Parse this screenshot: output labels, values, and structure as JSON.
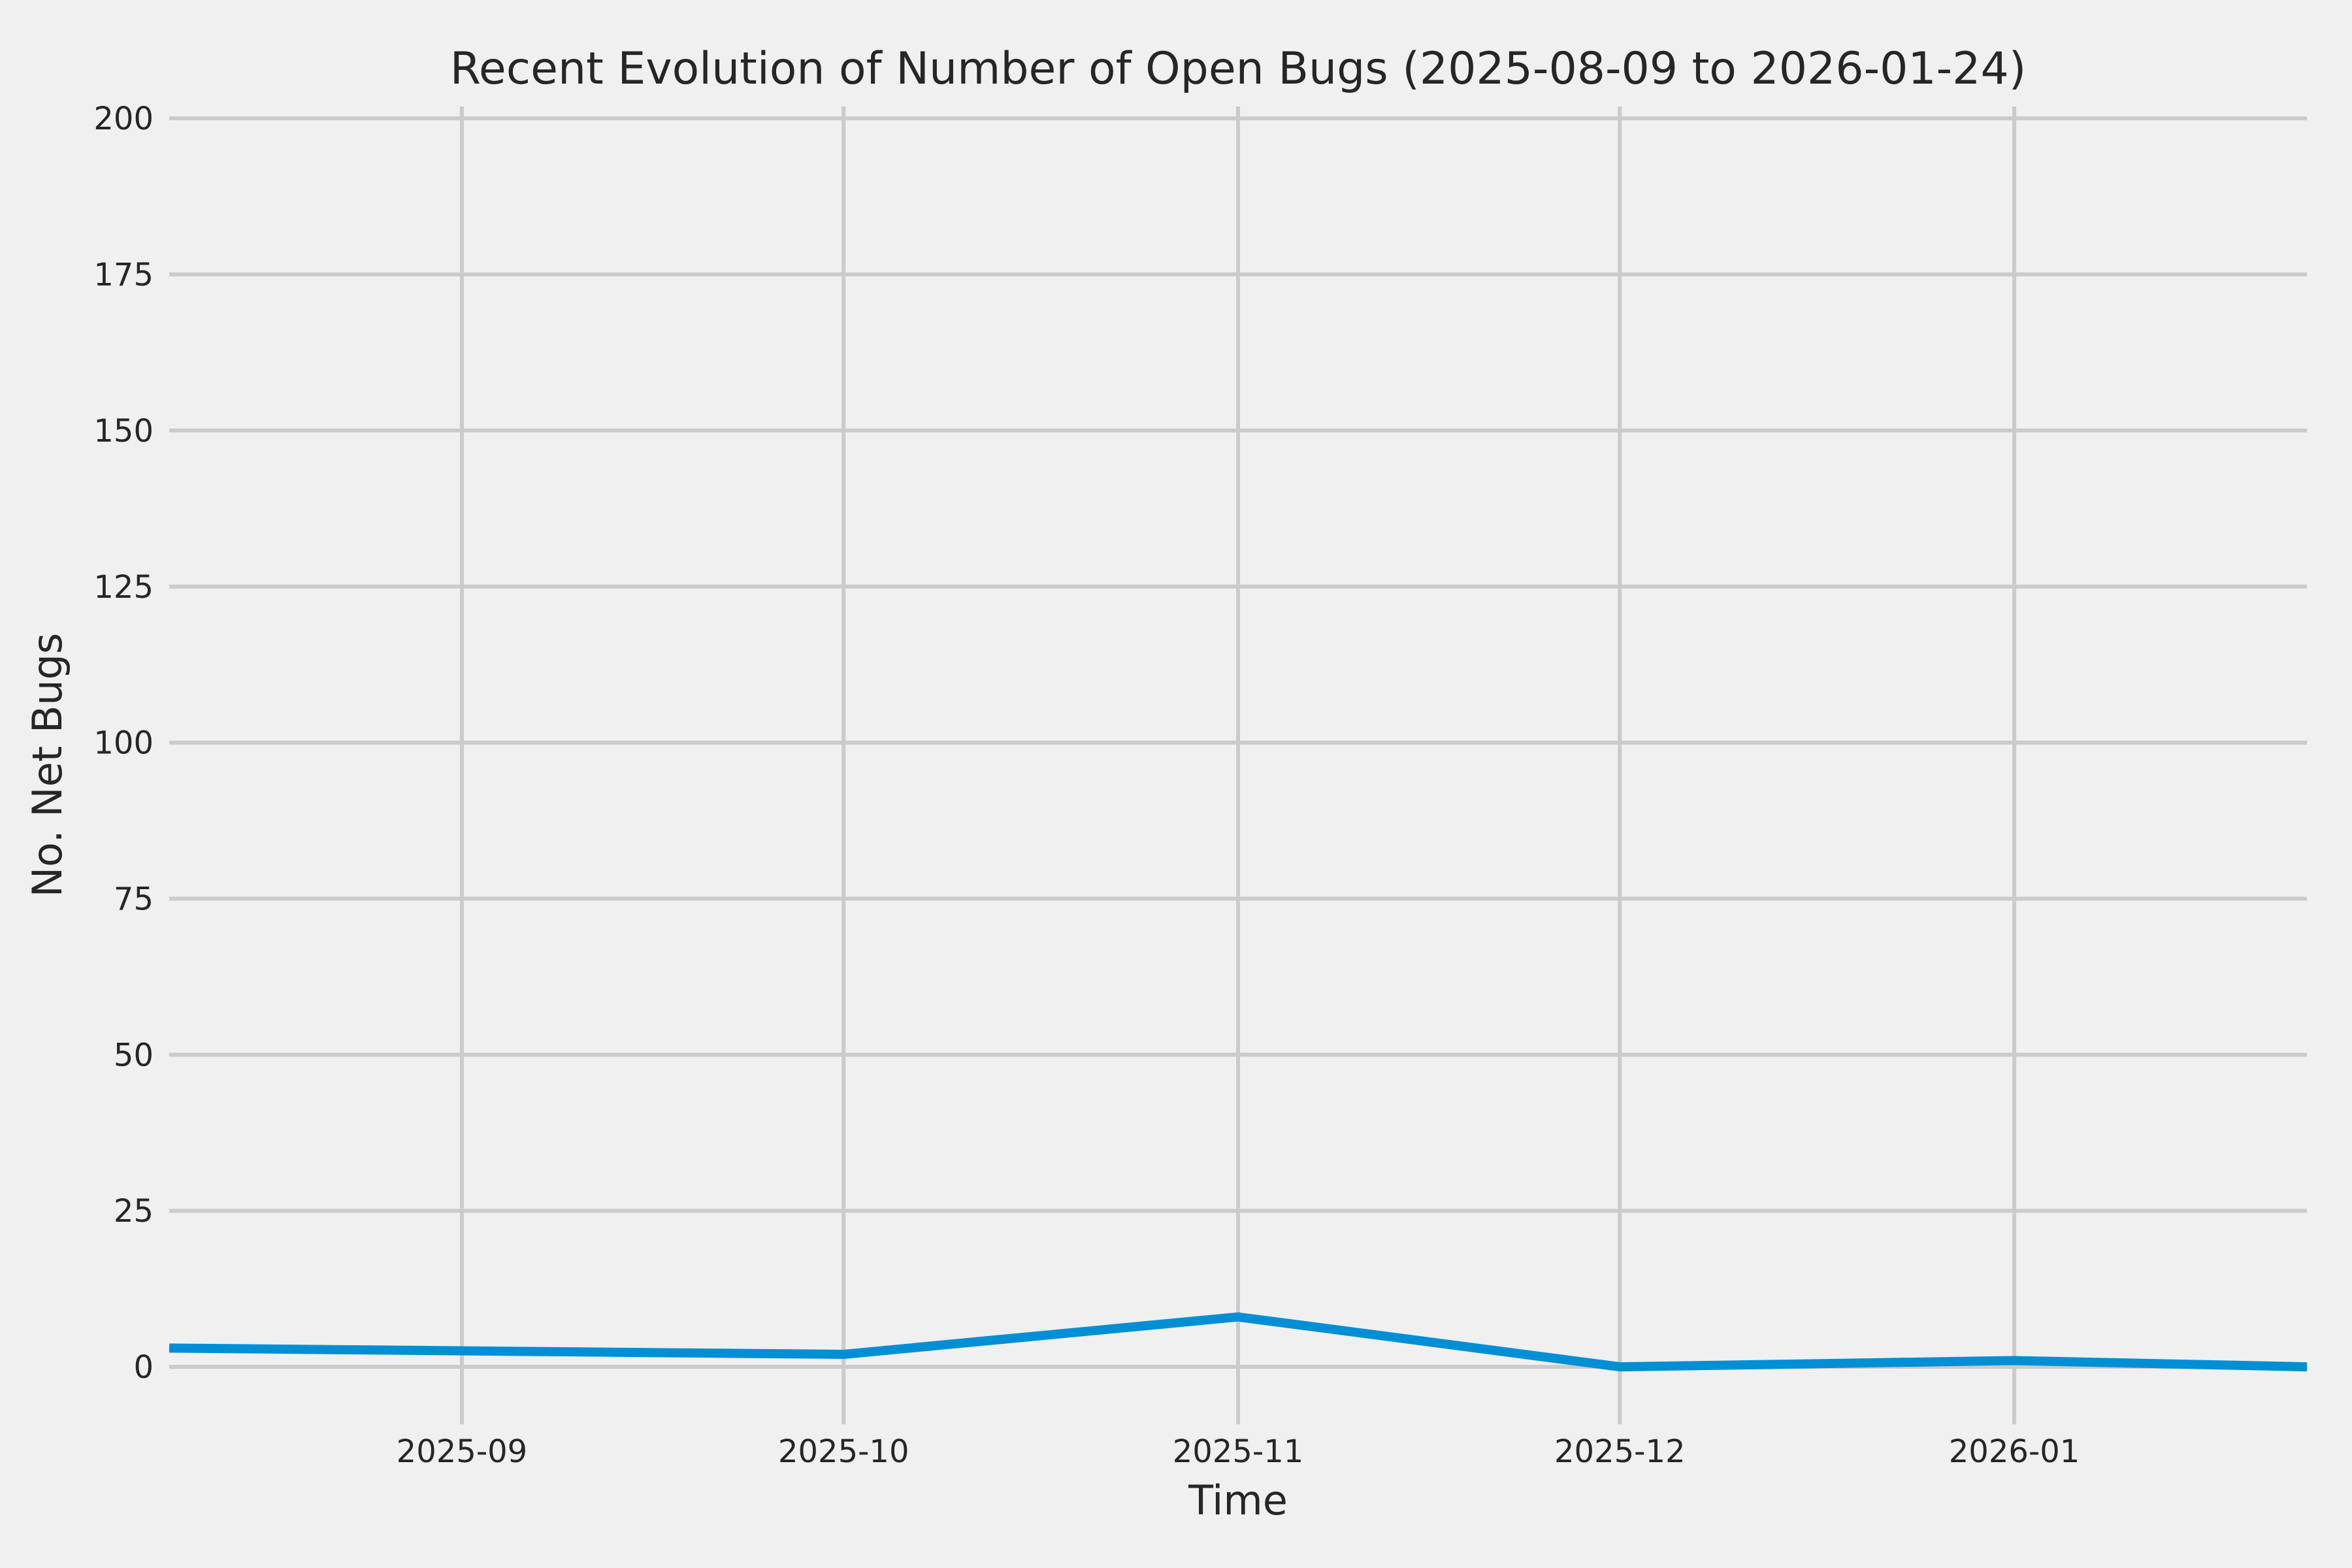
{
  "figure": {
    "background_color": "#f0f0f0",
    "grid_color": "#cbcbcb",
    "text_color": "#262626"
  },
  "chart_data": {
    "type": "line",
    "title": "Recent Evolution of Number of Open Bugs (2025-08-09 to 2026-01-24)",
    "xlabel": "Time",
    "ylabel": "No. Net Bugs",
    "grid": true,
    "legend": "none",
    "markers": "none",
    "x_start": "2025-08-09",
    "x_end": "2026-01-24",
    "ylim": [
      -9.2,
      201.9
    ],
    "y_ticks": [
      0,
      25,
      50,
      75,
      100,
      125,
      150,
      175,
      200
    ],
    "x_ticks": [
      {
        "label": "2025-09",
        "date": "2025-09-01"
      },
      {
        "label": "2025-10",
        "date": "2025-10-01"
      },
      {
        "label": "2025-11",
        "date": "2025-11-01"
      },
      {
        "label": "2025-12",
        "date": "2025-12-01"
      },
      {
        "label": "2026-01",
        "date": "2026-01-01"
      }
    ],
    "series": [
      {
        "name": "open-bugs",
        "color": "#008fd5",
        "dates": [
          "2025-08-09",
          "2025-10-01",
          "2025-11-01",
          "2025-12-01",
          "2026-01-01",
          "2026-01-24"
        ],
        "values": [
          3,
          2,
          8,
          0,
          1,
          0
        ]
      }
    ]
  }
}
